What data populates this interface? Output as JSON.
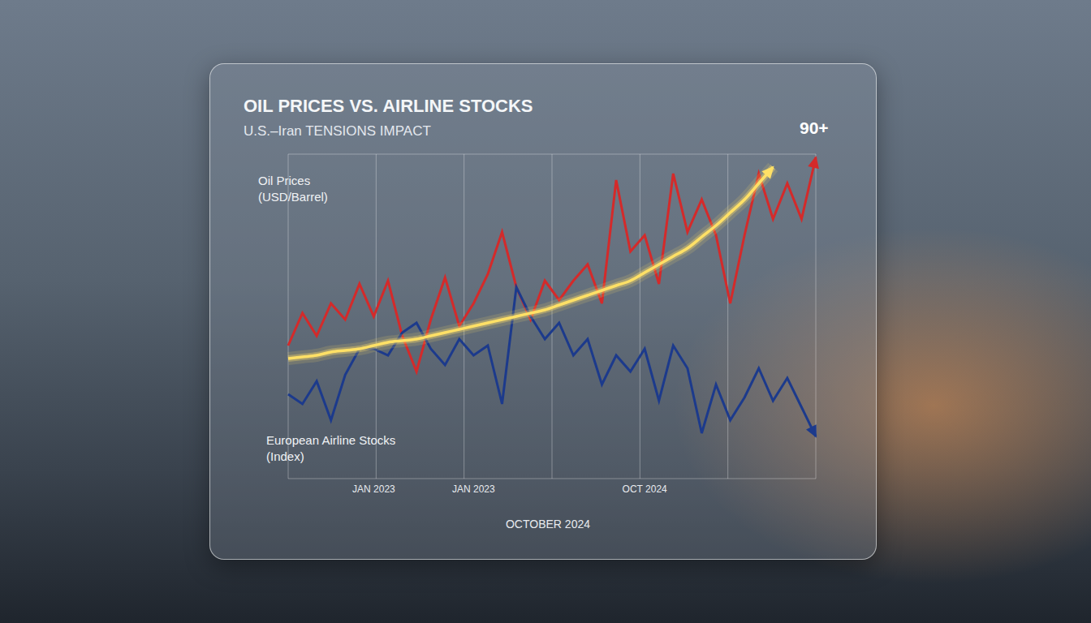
{
  "chart_data": {
    "type": "line",
    "title": "OIL PRICES VS. AIRLINE STOCKS",
    "subtitle": "U.S.–Iran TENSIONS IMPACT",
    "x_label": "OCTOBER 2024",
    "annotation": "90+",
    "categories": [
      null,
      null,
      null,
      null,
      null,
      null,
      "JAN 2023",
      null,
      null,
      null,
      null,
      null,
      null,
      "JAN 2023",
      null,
      null,
      null,
      null,
      null,
      null,
      null,
      null,
      null,
      null,
      null,
      "OCT 2024",
      null,
      null,
      null,
      null,
      null,
      null,
      null,
      null,
      null,
      null,
      null,
      null
    ],
    "series": [
      {
        "name": "Oil Prices (USD/Barrel)",
        "color": "#d42a2a",
        "marker": "arrow",
        "values": [
          41,
          51,
          44,
          54,
          49,
          60,
          50,
          61,
          44,
          33,
          49,
          62,
          47,
          54,
          63,
          76,
          59,
          49,
          61,
          55,
          61,
          66,
          54,
          92,
          70,
          75,
          60,
          94,
          76,
          86,
          75,
          54,
          75,
          94,
          80,
          91,
          80,
          99
        ]
      },
      {
        "name": "European Airline Stocks (Index)",
        "color": "#1c3a8c",
        "marker": "arrow",
        "values": [
          26,
          23,
          30,
          18,
          32,
          40,
          40,
          38,
          45,
          48,
          40,
          35,
          43,
          38,
          41,
          23,
          59,
          50,
          43,
          48,
          38,
          43,
          29,
          38,
          33,
          40,
          24,
          41,
          34,
          14,
          29,
          18,
          25,
          34,
          24,
          31,
          22,
          13
        ]
      },
      {
        "color": "#ffe066",
        "line_style": "glow",
        "marker": "arrow",
        "values": [
          37,
          37.5,
          38,
          39,
          39.5,
          40,
          41,
          42,
          42.5,
          43,
          44,
          45,
          46,
          47,
          48,
          49,
          50,
          51,
          52,
          53.5,
          55,
          56.5,
          58,
          59.5,
          61,
          63.5,
          66,
          68.5,
          71,
          74.5,
          78,
          82,
          86,
          91,
          96,
          null,
          null,
          null
        ]
      }
    ],
    "ylim": [
      0,
      100
    ],
    "yticks": [
      0,
      20,
      40,
      60,
      80,
      100
    ],
    "grid": true,
    "tick_labels": "x"
  }
}
